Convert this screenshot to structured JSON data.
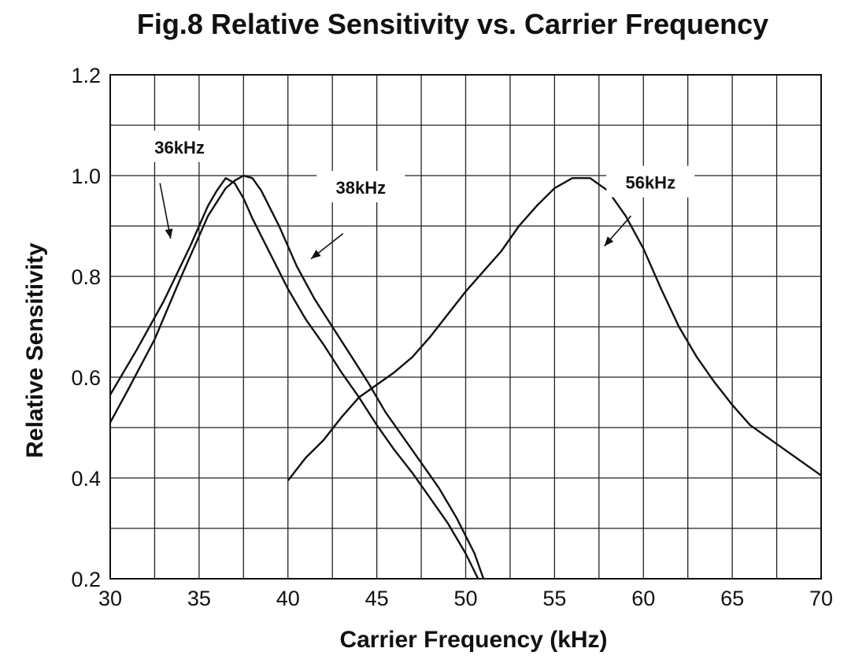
{
  "chart_data": {
    "type": "line",
    "title": "Fig.8 Relative Sensitivity vs. Carrier Frequency",
    "xlabel": "Carrier Frequency (kHz)",
    "ylabel": "Relative Sensitivity",
    "xlim": [
      30,
      70
    ],
    "ylim": [
      0.2,
      1.2
    ],
    "grid": true,
    "x_ticks": [
      "30",
      "35",
      "40",
      "45",
      "50",
      "55",
      "60",
      "65",
      "70"
    ],
    "y_ticks": [
      "0.2",
      "0.4",
      "0.6",
      "0.8",
      "1.0",
      "1.2"
    ],
    "series": [
      {
        "name": "36kHz",
        "x": [
          30,
          31.5,
          33,
          34.5,
          35.5,
          36,
          36.5,
          37,
          37.5,
          38,
          39,
          40,
          41,
          42,
          43,
          44,
          45,
          46,
          47,
          48,
          49,
          50,
          50.7
        ],
        "y": [
          0.565,
          0.655,
          0.75,
          0.86,
          0.94,
          0.97,
          0.995,
          0.985,
          0.955,
          0.915,
          0.845,
          0.775,
          0.715,
          0.665,
          0.61,
          0.56,
          0.505,
          0.455,
          0.41,
          0.36,
          0.31,
          0.25,
          0.2
        ]
      },
      {
        "name": "38kHz",
        "x": [
          30,
          31,
          32.5,
          34,
          35.5,
          36.5,
          37,
          37.5,
          38,
          38.5,
          39.5,
          40.5,
          41.5,
          42.5,
          43.5,
          44.5,
          45.5,
          46.5,
          47.5,
          48.5,
          49.5,
          50.5,
          51
        ],
        "y": [
          0.51,
          0.575,
          0.675,
          0.8,
          0.92,
          0.975,
          0.99,
          1.0,
          0.995,
          0.97,
          0.9,
          0.82,
          0.755,
          0.7,
          0.645,
          0.59,
          0.53,
          0.48,
          0.43,
          0.38,
          0.32,
          0.25,
          0.2
        ]
      },
      {
        "name": "56kHz",
        "x": [
          40,
          41,
          42,
          43,
          44,
          45,
          46,
          47,
          48,
          49,
          50,
          51,
          52,
          53,
          54,
          55,
          56,
          57,
          58,
          59,
          60,
          61,
          62,
          63,
          64,
          65,
          66,
          67,
          68,
          69,
          70
        ],
        "y": [
          0.395,
          0.44,
          0.475,
          0.52,
          0.56,
          0.585,
          0.61,
          0.64,
          0.68,
          0.725,
          0.77,
          0.81,
          0.85,
          0.9,
          0.94,
          0.975,
          0.995,
          0.995,
          0.97,
          0.92,
          0.855,
          0.775,
          0.7,
          0.64,
          0.59,
          0.545,
          0.505,
          0.48,
          0.455,
          0.43,
          0.405
        ]
      }
    ],
    "annotations": [
      {
        "text": "36kHz",
        "series": "36kHz"
      },
      {
        "text": "38kHz",
        "series": "38kHz"
      },
      {
        "text": "56kHz",
        "series": "56kHz"
      }
    ]
  }
}
